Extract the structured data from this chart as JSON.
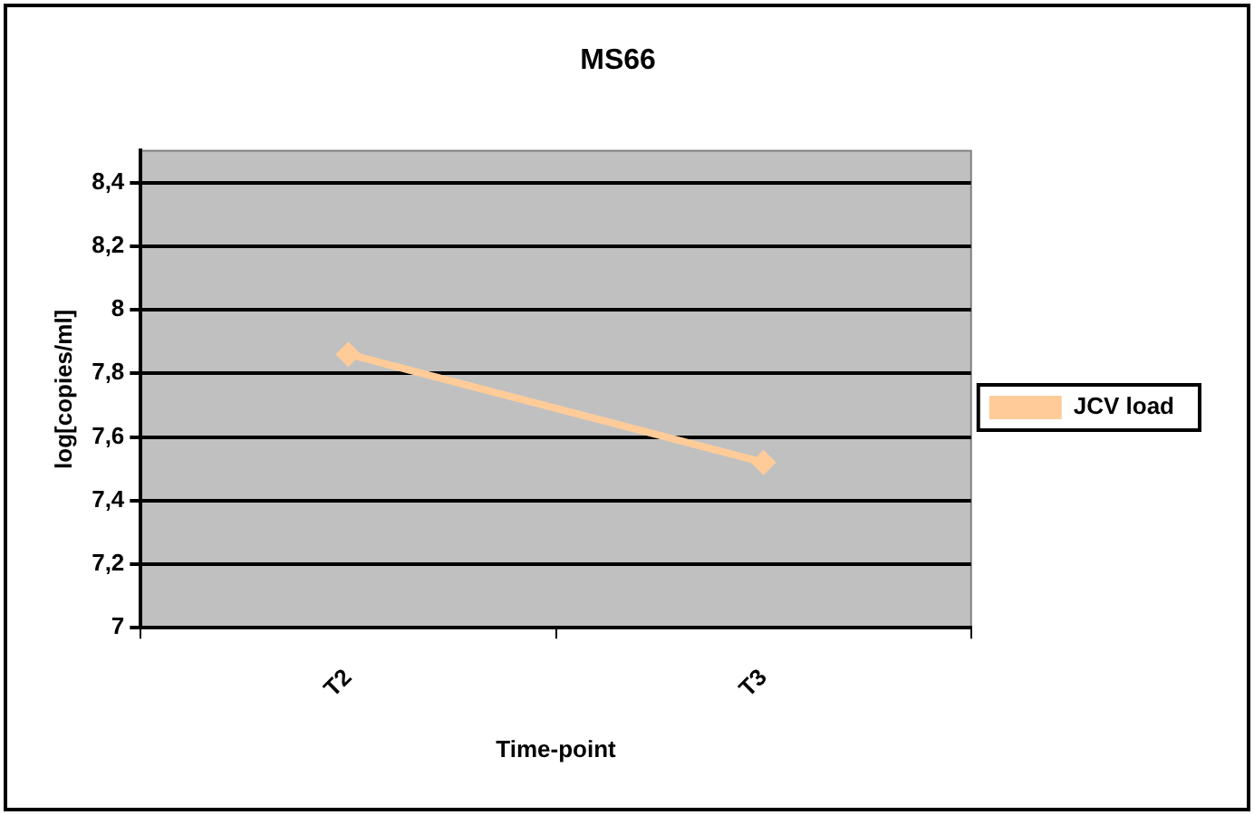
{
  "chart_data": {
    "type": "line",
    "title": "MS66",
    "xlabel": "Time-point",
    "ylabel": "log[copies/ml]",
    "categories": [
      "T2",
      "T3"
    ],
    "series": [
      {
        "name": "JCV load",
        "color": "#ffcc99",
        "values": [
          7.86,
          7.52
        ]
      }
    ],
    "ylim": [
      7,
      8.5
    ],
    "yticks": [
      7,
      {
        "value": 7.2,
        "label": "7,2"
      },
      {
        "value": 7.4,
        "label": "7,4"
      },
      {
        "value": 7.6,
        "label": "7,6"
      },
      {
        "value": 7.8,
        "label": "7,8"
      },
      8,
      {
        "value": 8.2,
        "label": "8,2"
      },
      {
        "value": 8.4,
        "label": "8,4"
      }
    ],
    "grid": "y",
    "legend": "right",
    "marker": "diamond",
    "line_style": "solid"
  }
}
